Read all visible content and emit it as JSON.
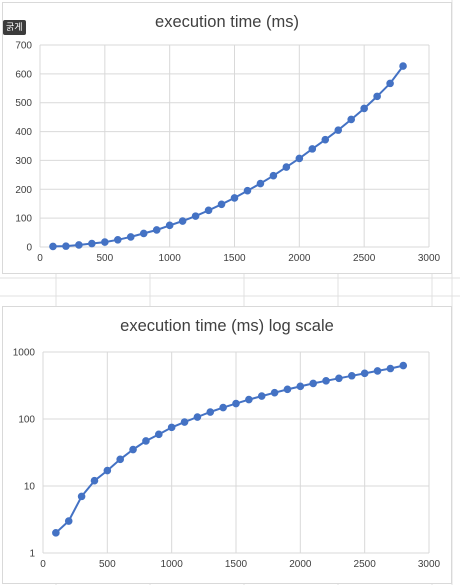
{
  "badge": {
    "label": "굵게"
  },
  "chart_data": [
    {
      "type": "line",
      "title": "execution time (ms)",
      "xlabel": "",
      "ylabel": "",
      "xlim": [
        0,
        3000
      ],
      "ylim": [
        0,
        700
      ],
      "x_ticks": [
        0,
        500,
        1000,
        1500,
        2000,
        2500,
        3000
      ],
      "y_ticks": [
        0,
        100,
        200,
        300,
        400,
        500,
        600,
        700
      ],
      "log_y": false,
      "grid": true,
      "series": [
        {
          "x": [
            100,
            200,
            300,
            400,
            500,
            600,
            700,
            800,
            900,
            1000,
            1100,
            1200,
            1300,
            1400,
            1500,
            1600,
            1700,
            1800,
            1900,
            2000,
            2100,
            2200,
            2300,
            2400,
            2500,
            2600,
            2700,
            2800
          ],
          "y": [
            2,
            3,
            7,
            12,
            17,
            25,
            35,
            47,
            59,
            75,
            90,
            107,
            127,
            148,
            170,
            195,
            220,
            247,
            277,
            307,
            340,
            372,
            405,
            442,
            480,
            522,
            567,
            627
          ]
        }
      ]
    },
    {
      "type": "line",
      "title": "execution time (ms) log scale",
      "xlabel": "",
      "ylabel": "",
      "xlim": [
        0,
        3000
      ],
      "ylim": [
        1,
        1000
      ],
      "x_ticks": [
        0,
        500,
        1000,
        1500,
        2000,
        2500,
        3000
      ],
      "y_ticks": [
        1,
        10,
        100,
        1000
      ],
      "log_y": true,
      "grid": true,
      "series": [
        {
          "x": [
            100,
            200,
            300,
            400,
            500,
            600,
            700,
            800,
            900,
            1000,
            1100,
            1200,
            1300,
            1400,
            1500,
            1600,
            1700,
            1800,
            1900,
            2000,
            2100,
            2200,
            2300,
            2400,
            2500,
            2600,
            2700,
            2800
          ],
          "y": [
            2,
            3,
            7,
            12,
            17,
            25,
            35,
            47,
            59,
            75,
            90,
            107,
            127,
            148,
            170,
            195,
            220,
            247,
            277,
            307,
            340,
            372,
            405,
            442,
            480,
            522,
            567,
            627
          ]
        }
      ]
    }
  ]
}
